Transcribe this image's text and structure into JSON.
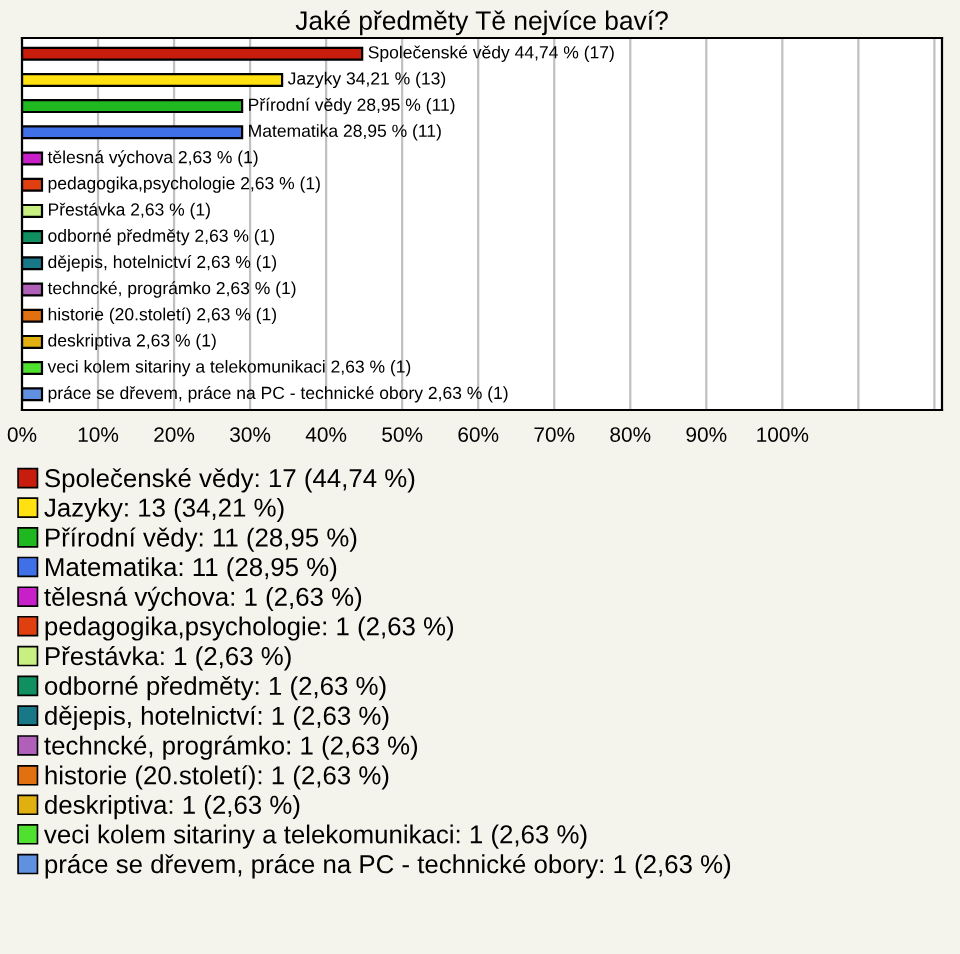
{
  "chart_data": {
    "type": "bar",
    "orientation": "horizontal",
    "title": "Jaké předměty Tě nejvíce baví?",
    "categories": [
      null,
      null,
      null,
      null,
      null,
      null,
      null,
      null,
      null,
      null,
      null,
      null,
      null,
      null
    ],
    "values": [
      44.74,
      34.21,
      28.95,
      28.95,
      2.63,
      2.63,
      2.63,
      2.63,
      2.63,
      2.63,
      2.63,
      2.63,
      2.63,
      2.63
    ],
    "colors": [
      "#c81c0c",
      "#ffe010",
      "#20b820",
      "#4070e8",
      "#c820c8",
      "#e04010",
      "#c8f080",
      "#109060",
      "#187888",
      "#b060b8",
      "#e07010",
      "#e0b010",
      "#50e030",
      "#6090e0"
    ],
    "value_labels": [
      "Společenské vědy 44,74 % (17)",
      "Jazyky 34,21 % (13)",
      "Přírodní vědy 28,95 % (11)",
      "Matematika 28,95 % (11)",
      "tělesná výchova 2,63 % (1)",
      "pedagogika,psychologie 2,63 % (1)",
      "Přestávka 2,63 % (1)",
      "odborné předměty 2,63 % (1)",
      "dějepis, hotelnictví 2,63 % (1)",
      "techncké, prográmko 2,63 % (1)",
      "historie (20.století) 2,63 % (1)",
      "deskriptiva 2,63 % (1)",
      "veci kolem sitariny a telekomunikaci 2,63 % (1)",
      "práce se dřevem, práce na PC - technické obory 2,63 % (1)"
    ],
    "annotations": [
      "Společenské vědy: 17 (44,74 %)",
      "Jazyky: 13 (34,21 %)",
      "Přírodní vědy: 11 (28,95 %)",
      "Matematika: 11 (28,95 %)",
      "tělesná výchova: 1 (2,63 %)",
      "pedagogika,psychologie: 1 (2,63 %)",
      "Přestávka: 1 (2,63 %)",
      "odborné předměty: 1 (2,63 %)",
      "dějepis, hotelnictví: 1 (2,63 %)",
      "techncké, prográmko: 1 (2,63 %)",
      "historie (20.století): 1 (2,63 %)",
      "deskriptiva: 1 (2,63 %)",
      "veci kolem sitariny a telekomunikaci: 1 (2,63 %)",
      "práce se dřevem, práce na PC - technické obory: 1 (2,63 %)"
    ],
    "xlim": [
      0,
      121
    ],
    "xticks": [
      {
        "value": 0,
        "label": "0%"
      },
      {
        "value": 10,
        "label": "10%"
      },
      {
        "value": 20,
        "label": "20%"
      },
      {
        "value": 30,
        "label": "30%"
      },
      {
        "value": 40,
        "label": "40%"
      },
      {
        "value": 50,
        "label": "50%"
      },
      {
        "value": 60,
        "label": "60%"
      },
      {
        "value": 70,
        "label": "70%"
      },
      {
        "value": 80,
        "label": "80%"
      },
      {
        "value": 90,
        "label": "90%"
      },
      {
        "value": 100,
        "label": "100%"
      },
      {
        "value": 110,
        "label": null
      },
      {
        "value": 120,
        "label": null
      }
    ],
    "grid": "x"
  }
}
